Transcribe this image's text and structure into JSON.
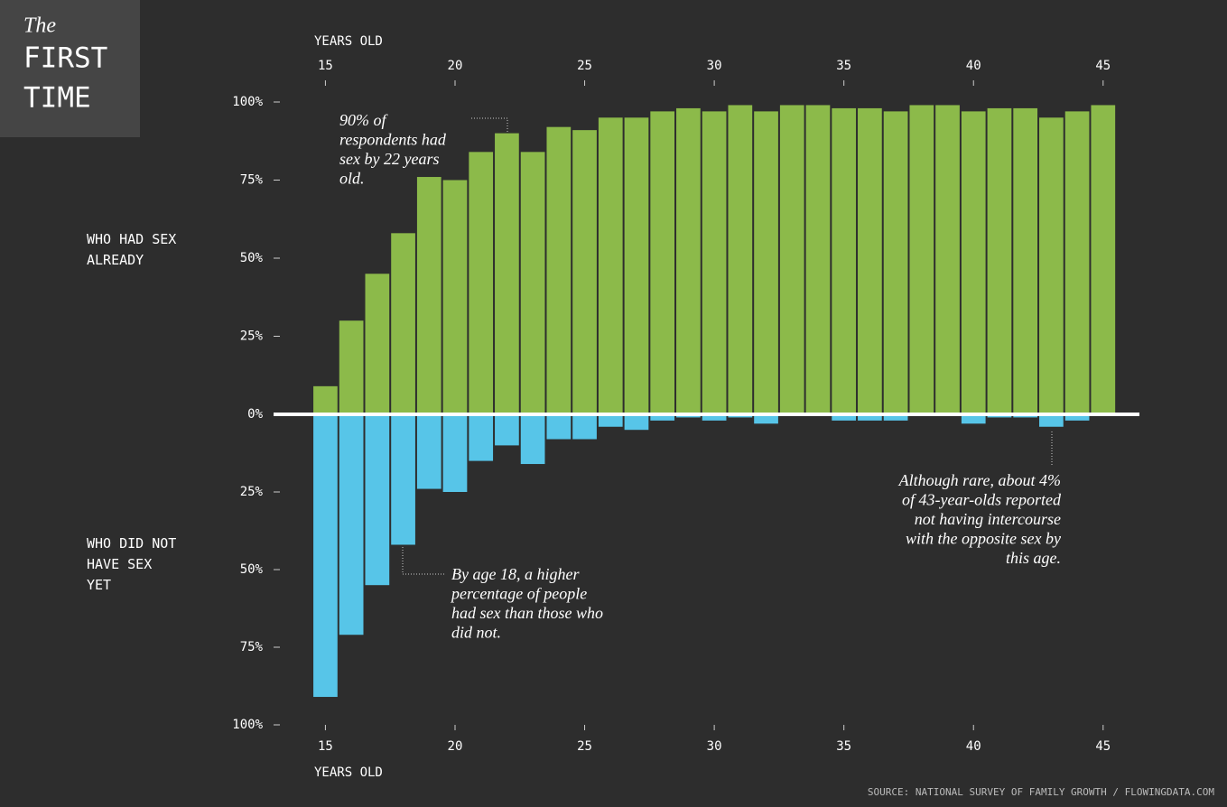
{
  "chart_data": {
    "type": "diverging-bar",
    "title": {
      "kicker": "The",
      "lines": [
        "FIRST",
        "TIME"
      ]
    },
    "x_label": "YEARS OLD",
    "x": [
      15,
      16,
      17,
      18,
      19,
      20,
      21,
      22,
      23,
      24,
      25,
      26,
      27,
      28,
      29,
      30,
      31,
      32,
      33,
      34,
      35,
      36,
      37,
      38,
      39,
      40,
      41,
      42,
      43,
      44,
      45
    ],
    "xlim": [
      13,
      46.4
    ],
    "xticks": [
      15,
      20,
      25,
      30,
      35,
      40,
      45
    ],
    "ylim": [
      0,
      100
    ],
    "yticks": [
      {
        "value": 0,
        "label": "0%"
      },
      {
        "value": 25,
        "label": "25%"
      },
      {
        "value": 50,
        "label": "50%"
      },
      {
        "value": 75,
        "label": "75%"
      },
      {
        "value": 100,
        "label": "100%"
      }
    ],
    "y2lim": [
      0,
      100
    ],
    "y2ticks": [
      {
        "value": 25,
        "label": "25%"
      },
      {
        "value": 50,
        "label": "50%"
      },
      {
        "value": 75,
        "label": "75%"
      },
      {
        "value": 100,
        "label": "100%"
      }
    ],
    "series": [
      {
        "name": "WHO HAD SEX ALREADY",
        "color": "#8cba4a",
        "values": [
          9,
          30,
          45,
          58,
          76,
          75,
          84,
          90,
          84,
          92,
          91,
          95,
          95,
          97,
          98,
          97,
          99,
          97,
          99,
          99,
          98,
          98,
          97,
          99,
          99,
          97,
          98,
          98,
          95,
          97,
          99
        ]
      },
      {
        "name": "WHO DID NOT HAVE SEX YET",
        "color": "#57c5e8",
        "axis": "y2",
        "values": [
          91,
          71,
          55,
          42,
          24,
          25,
          15,
          10,
          16,
          8,
          8,
          4,
          5,
          2,
          1,
          2,
          1,
          3,
          0,
          0,
          2,
          2,
          2,
          0,
          0,
          3,
          1,
          1,
          4,
          2,
          0
        ]
      }
    ],
    "annotations": [
      {
        "text": [
          "90% of",
          "respondents had",
          "sex by 22 years",
          "old."
        ]
      },
      {
        "text": [
          "By age 18, a higher",
          "percentage of people",
          "had sex than those who",
          "did not."
        ]
      },
      {
        "text": [
          "Although rare, about 4%",
          "of 43-year-olds reported",
          "not having intercourse",
          "with the opposite sex by",
          "this age."
        ]
      }
    ],
    "source": "SOURCE: NATIONAL SURVEY OF FAMILY GROWTH / FLOWINGDATA.COM"
  }
}
